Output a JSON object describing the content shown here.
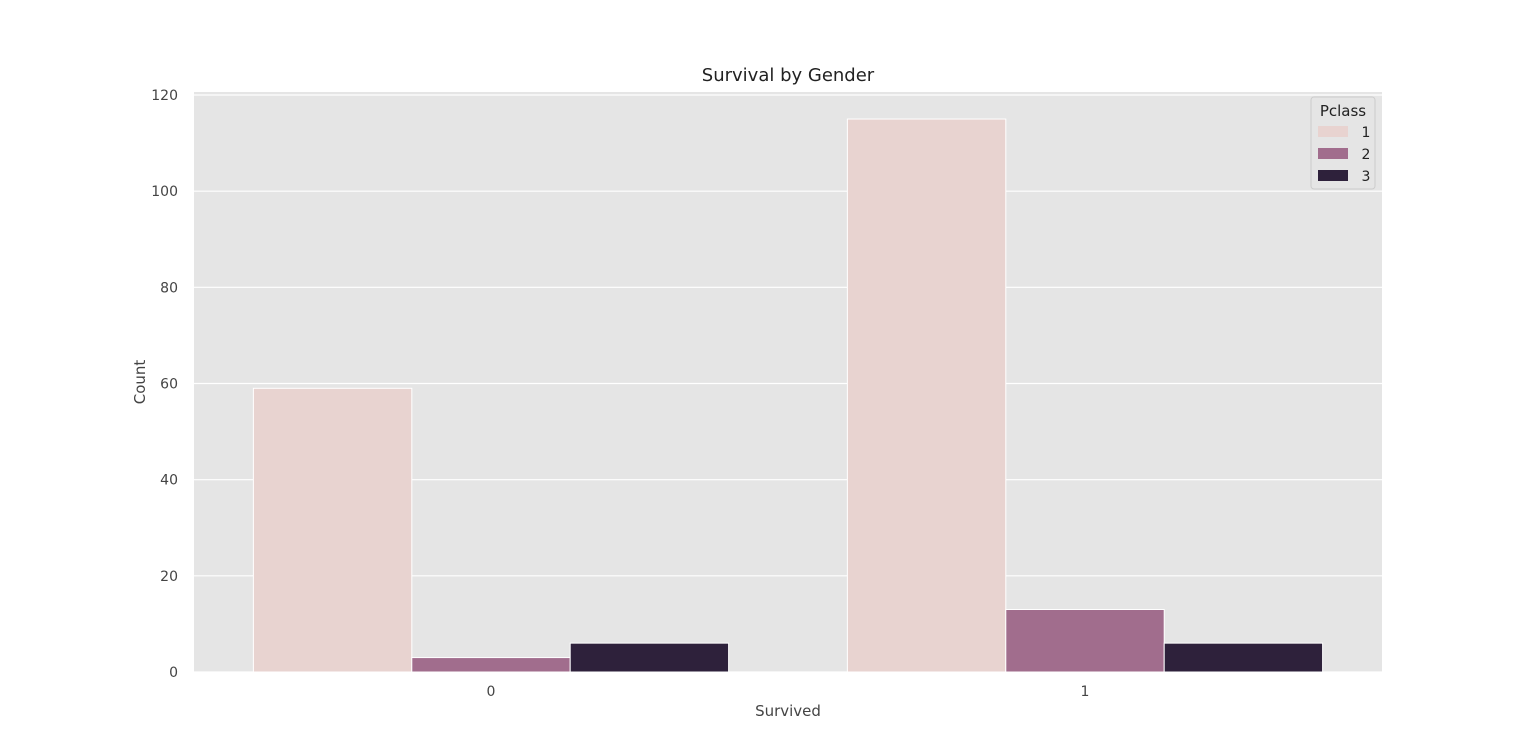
{
  "chart_data": {
    "type": "bar",
    "title": "Survival by Gender",
    "xlabel": "Survived",
    "ylabel": "Count",
    "categories": [
      "0",
      "1"
    ],
    "ylim": [
      0,
      120
    ],
    "yticks": [
      0,
      20,
      40,
      60,
      80,
      100,
      120
    ],
    "grid": true,
    "legend": {
      "title": "Pclass",
      "placement": "top-right"
    },
    "series": [
      {
        "name": "1",
        "color": "#e8d3d0",
        "values": [
          59,
          115
        ]
      },
      {
        "name": "2",
        "color": "#a16d8d",
        "values": [
          3,
          13
        ]
      },
      {
        "name": "3",
        "color": "#2e213b",
        "values": [
          6,
          6
        ]
      }
    ],
    "plot_background": "#e5e5e5",
    "grid_color": "#ffffff"
  }
}
